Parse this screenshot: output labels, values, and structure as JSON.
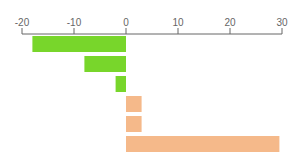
{
  "chart_data": {
    "type": "bar",
    "orientation": "horizontal",
    "categories": [
      null,
      null,
      null,
      null,
      null,
      null
    ],
    "values": [
      -18.0,
      -8.0,
      -2.0,
      3.0,
      3.0,
      29.5
    ],
    "colors": [
      "#78d62b",
      "#78d62b",
      "#78d62b",
      "#f5b98a",
      "#f5b98a",
      "#f5b98a"
    ],
    "xlim": [
      -20,
      30
    ],
    "xticks": [
      -20,
      -10,
      0,
      10,
      20,
      30
    ],
    "grid": false,
    "tick_labels": "x"
  }
}
